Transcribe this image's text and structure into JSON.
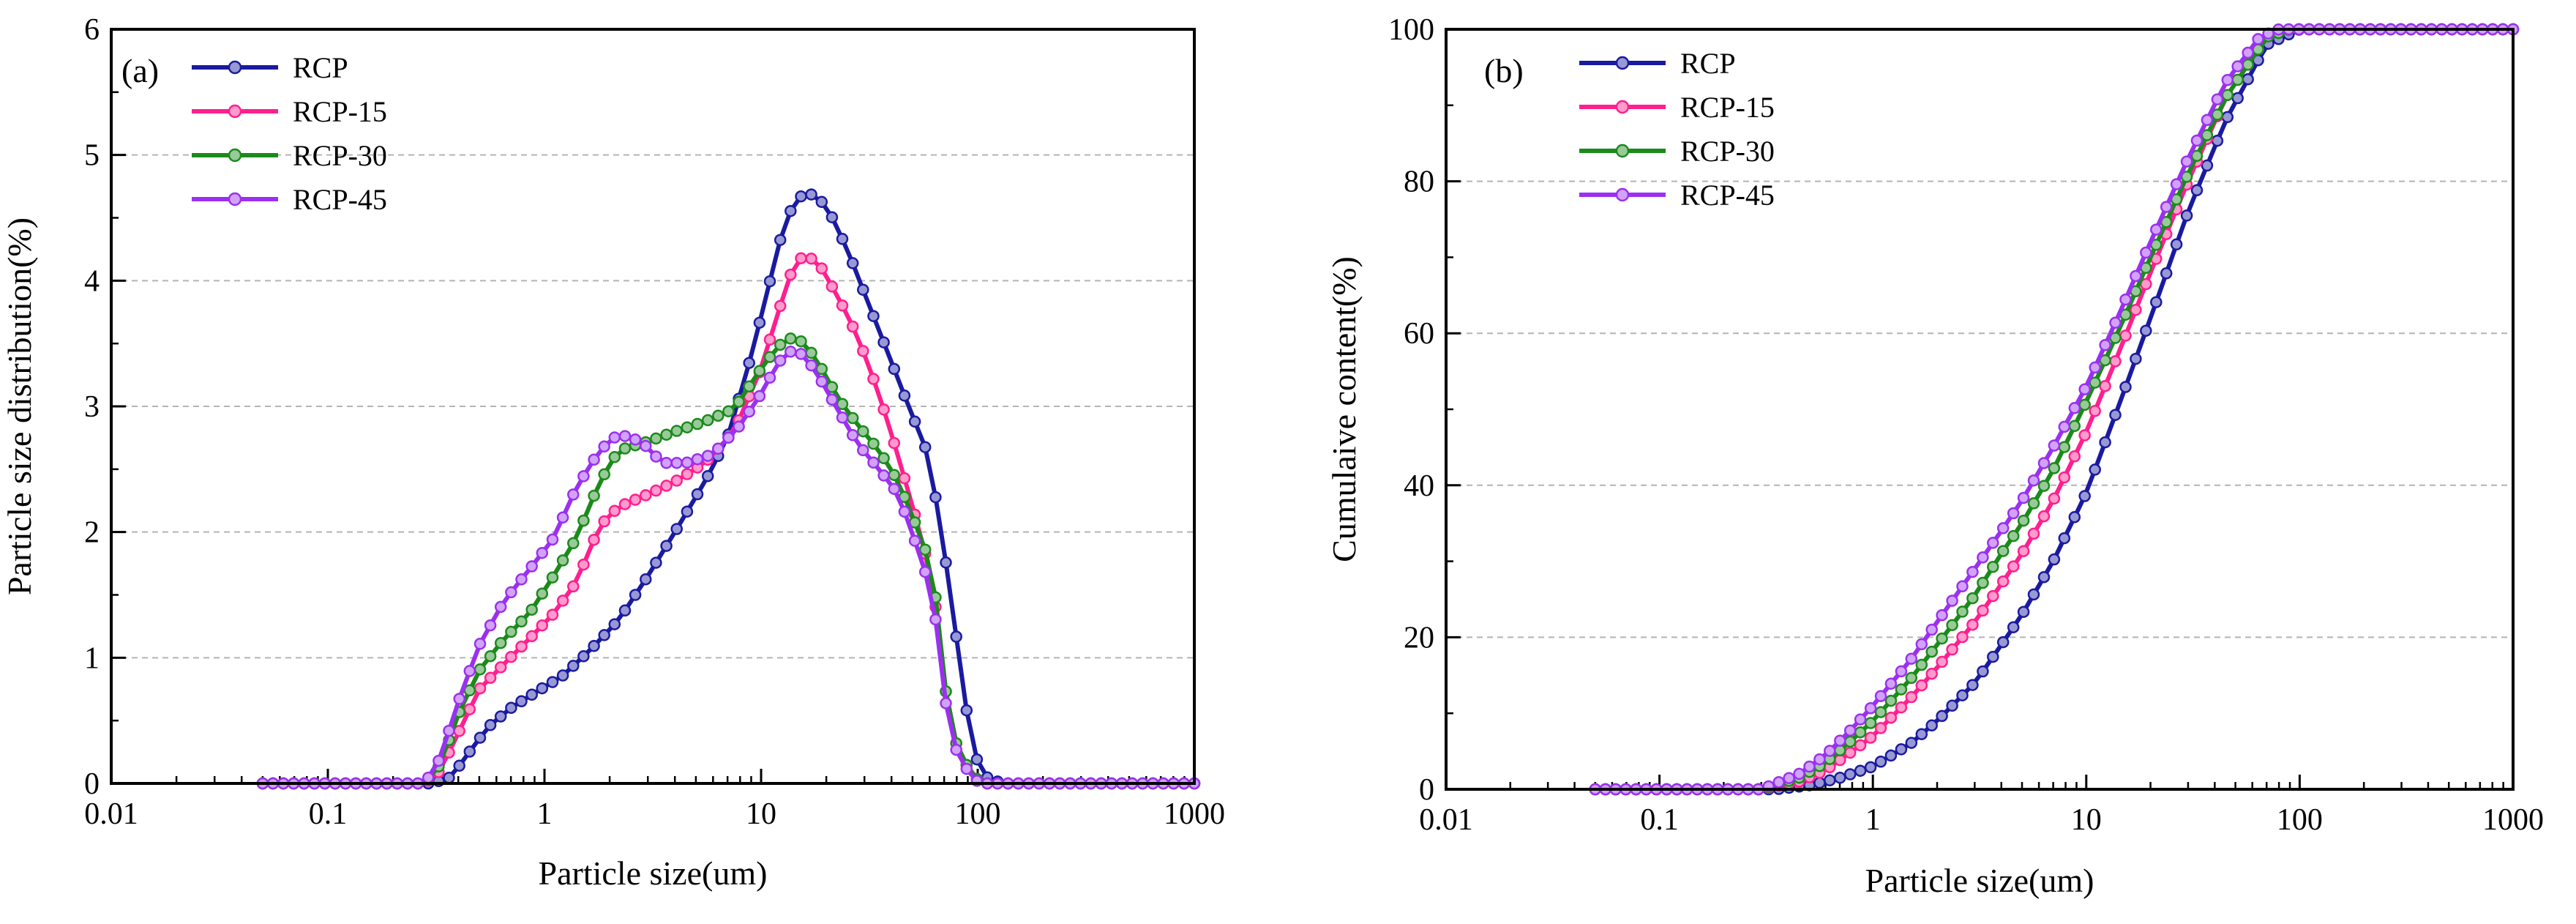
{
  "figure": {
    "background": "#ffffff"
  },
  "chart_data": [
    {
      "type": "line",
      "panel_label": "(a)",
      "title": "",
      "xlabel": "Particle size(um)",
      "ylabel": "Particle size distribution(%)",
      "xscale": "log",
      "xlim": [
        0.01,
        1000
      ],
      "ylim": [
        0,
        6
      ],
      "xticks": [
        0.01,
        0.1,
        1,
        10,
        100,
        1000
      ],
      "xtick_labels": [
        "0.01",
        "0.1",
        "1",
        "10",
        "100",
        "1000"
      ],
      "yticks": [
        0,
        1,
        2,
        3,
        4,
        5,
        6
      ],
      "ytick_labels": [
        "0",
        "1",
        "2",
        "3",
        "4",
        "5",
        "6"
      ],
      "grid": "horizontal-dashed",
      "legend_position": "top-left",
      "series": [
        {
          "name": "RCP",
          "color": "#1a1aa0",
          "points": [
            [
              0.05,
              0
            ],
            [
              0.3,
              0
            ],
            [
              0.37,
              0.05
            ],
            [
              0.45,
              0.25
            ],
            [
              0.55,
              0.45
            ],
            [
              0.7,
              0.6
            ],
            [
              0.9,
              0.72
            ],
            [
              1.2,
              0.85
            ],
            [
              1.6,
              1.05
            ],
            [
              2.2,
              1.3
            ],
            [
              3,
              1.65
            ],
            [
              4,
              2.0
            ],
            [
              5.5,
              2.4
            ],
            [
              7,
              2.75
            ],
            [
              9,
              3.4
            ],
            [
              11,
              4.0
            ],
            [
              13,
              4.5
            ],
            [
              16,
              4.72
            ],
            [
              20,
              4.6
            ],
            [
              25,
              4.25
            ],
            [
              30,
              3.9
            ],
            [
              38,
              3.45
            ],
            [
              48,
              3.0
            ],
            [
              58,
              2.65
            ],
            [
              66,
              2.15
            ],
            [
              75,
              1.5
            ],
            [
              85,
              0.8
            ],
            [
              95,
              0.25
            ],
            [
              110,
              0.05
            ],
            [
              130,
              0
            ],
            [
              1000,
              0
            ]
          ]
        },
        {
          "name": "RCP-15",
          "color": "#ff1f8f",
          "points": [
            [
              0.05,
              0
            ],
            [
              0.28,
              0
            ],
            [
              0.33,
              0.1
            ],
            [
              0.4,
              0.4
            ],
            [
              0.5,
              0.75
            ],
            [
              0.65,
              0.95
            ],
            [
              0.85,
              1.15
            ],
            [
              1.1,
              1.35
            ],
            [
              1.4,
              1.6
            ],
            [
              1.8,
              2.05
            ],
            [
              2.2,
              2.2
            ],
            [
              3,
              2.3
            ],
            [
              4,
              2.4
            ],
            [
              5.5,
              2.55
            ],
            [
              7.5,
              2.8
            ],
            [
              10,
              3.3
            ],
            [
              12,
              3.75
            ],
            [
              14,
              4.1
            ],
            [
              16,
              4.22
            ],
            [
              19,
              4.1
            ],
            [
              23,
              3.85
            ],
            [
              28,
              3.55
            ],
            [
              35,
              3.1
            ],
            [
              43,
              2.6
            ],
            [
              52,
              2.1
            ],
            [
              62,
              1.6
            ],
            [
              70,
              0.8
            ],
            [
              80,
              0.3
            ],
            [
              95,
              0.05
            ],
            [
              110,
              0
            ],
            [
              1000,
              0
            ]
          ]
        },
        {
          "name": "RCP-30",
          "color": "#1b8a1b",
          "points": [
            [
              0.05,
              0
            ],
            [
              0.28,
              0
            ],
            [
              0.33,
              0.15
            ],
            [
              0.4,
              0.55
            ],
            [
              0.5,
              0.9
            ],
            [
              0.65,
              1.15
            ],
            [
              0.85,
              1.35
            ],
            [
              1.1,
              1.65
            ],
            [
              1.4,
              1.95
            ],
            [
              1.8,
              2.4
            ],
            [
              2.2,
              2.65
            ],
            [
              3,
              2.72
            ],
            [
              4,
              2.8
            ],
            [
              5.5,
              2.88
            ],
            [
              7.5,
              2.98
            ],
            [
              10,
              3.3
            ],
            [
              12,
              3.48
            ],
            [
              14,
              3.55
            ],
            [
              16,
              3.5
            ],
            [
              19,
              3.3
            ],
            [
              23,
              3.05
            ],
            [
              28,
              2.85
            ],
            [
              35,
              2.65
            ],
            [
              43,
              2.4
            ],
            [
              52,
              2.05
            ],
            [
              62,
              1.7
            ],
            [
              70,
              0.8
            ],
            [
              80,
              0.3
            ],
            [
              95,
              0.05
            ],
            [
              110,
              0
            ],
            [
              1000,
              0
            ]
          ]
        },
        {
          "name": "RCP-45",
          "color": "#9b30f0",
          "points": [
            [
              0.05,
              0
            ],
            [
              0.28,
              0
            ],
            [
              0.33,
              0.2
            ],
            [
              0.4,
              0.65
            ],
            [
              0.5,
              1.1
            ],
            [
              0.65,
              1.45
            ],
            [
              0.85,
              1.7
            ],
            [
              1.1,
              1.95
            ],
            [
              1.4,
              2.35
            ],
            [
              1.8,
              2.65
            ],
            [
              2.2,
              2.78
            ],
            [
              2.8,
              2.72
            ],
            [
              3.5,
              2.55
            ],
            [
              4.5,
              2.55
            ],
            [
              6,
              2.62
            ],
            [
              8,
              2.85
            ],
            [
              10,
              3.1
            ],
            [
              12,
              3.35
            ],
            [
              14,
              3.45
            ],
            [
              16,
              3.4
            ],
            [
              19,
              3.2
            ],
            [
              23,
              2.95
            ],
            [
              28,
              2.7
            ],
            [
              35,
              2.5
            ],
            [
              43,
              2.3
            ],
            [
              52,
              1.9
            ],
            [
              62,
              1.5
            ],
            [
              70,
              0.7
            ],
            [
              80,
              0.25
            ],
            [
              95,
              0.03
            ],
            [
              110,
              0
            ],
            [
              1000,
              0
            ]
          ]
        }
      ]
    },
    {
      "type": "line",
      "panel_label": "(b)",
      "title": "",
      "xlabel": "Particle size(um)",
      "ylabel": "Cumulaive content(%)",
      "xscale": "log",
      "xlim": [
        0.01,
        1000
      ],
      "ylim": [
        0,
        100
      ],
      "xticks": [
        0.01,
        0.1,
        1,
        10,
        100,
        1000
      ],
      "xtick_labels": [
        "0.01",
        "0.1",
        "1",
        "10",
        "100",
        "1000"
      ],
      "yticks": [
        0,
        20,
        40,
        60,
        80,
        100
      ],
      "ytick_labels": [
        "0",
        "20",
        "40",
        "60",
        "80",
        "100"
      ],
      "grid": "horizontal-dashed",
      "legend_position": "top-left",
      "series": [
        {
          "name": "RCP",
          "color": "#1a1aa0",
          "points": [
            [
              0.05,
              0
            ],
            [
              0.35,
              0
            ],
            [
              0.5,
              0.5
            ],
            [
              0.7,
              1.5
            ],
            [
              1,
              3
            ],
            [
              1.5,
              6
            ],
            [
              2,
              9
            ],
            [
              3,
              14
            ],
            [
              4,
              19
            ],
            [
              5,
              23
            ],
            [
              7,
              30
            ],
            [
              10,
              39
            ],
            [
              14,
              50
            ],
            [
              20,
              62
            ],
            [
              30,
              76
            ],
            [
              45,
              88
            ],
            [
              70,
              98
            ],
            [
              100,
              100
            ],
            [
              1000,
              100
            ]
          ]
        },
        {
          "name": "RCP-15",
          "color": "#ff1f8f",
          "points": [
            [
              0.05,
              0
            ],
            [
              0.3,
              0
            ],
            [
              0.45,
              1
            ],
            [
              0.6,
              2.5
            ],
            [
              0.8,
              5
            ],
            [
              1,
              7
            ],
            [
              1.5,
              12
            ],
            [
              2,
              16
            ],
            [
              3,
              22
            ],
            [
              4,
              27
            ],
            [
              5,
              31
            ],
            [
              7,
              38
            ],
            [
              10,
              47
            ],
            [
              14,
              57
            ],
            [
              20,
              68
            ],
            [
              30,
              80
            ],
            [
              45,
              91
            ],
            [
              70,
              99
            ],
            [
              90,
              100
            ],
            [
              1000,
              100
            ]
          ]
        },
        {
          "name": "RCP-30",
          "color": "#1b8a1b",
          "points": [
            [
              0.05,
              0
            ],
            [
              0.3,
              0
            ],
            [
              0.45,
              1.5
            ],
            [
              0.6,
              3.5
            ],
            [
              0.8,
              6.5
            ],
            [
              1,
              9
            ],
            [
              1.5,
              14.5
            ],
            [
              2,
              19
            ],
            [
              3,
              25.5
            ],
            [
              4,
              31
            ],
            [
              5,
              35
            ],
            [
              7,
              42
            ],
            [
              10,
              51
            ],
            [
              14,
              60
            ],
            [
              20,
              70
            ],
            [
              30,
              81
            ],
            [
              45,
              91
            ],
            [
              70,
              99
            ],
            [
              90,
              100
            ],
            [
              1000,
              100
            ]
          ]
        },
        {
          "name": "RCP-45",
          "color": "#9b30f0",
          "points": [
            [
              0.05,
              0
            ],
            [
              0.3,
              0
            ],
            [
              0.45,
              2
            ],
            [
              0.6,
              4.5
            ],
            [
              0.8,
              8
            ],
            [
              1,
              11
            ],
            [
              1.5,
              17
            ],
            [
              2,
              22
            ],
            [
              3,
              29
            ],
            [
              4,
              34
            ],
            [
              5,
              38
            ],
            [
              7,
              45
            ],
            [
              10,
              53
            ],
            [
              14,
              62
            ],
            [
              20,
              72
            ],
            [
              30,
              83
            ],
            [
              45,
              93
            ],
            [
              65,
              99
            ],
            [
              80,
              100
            ],
            [
              1000,
              100
            ]
          ]
        }
      ]
    }
  ]
}
